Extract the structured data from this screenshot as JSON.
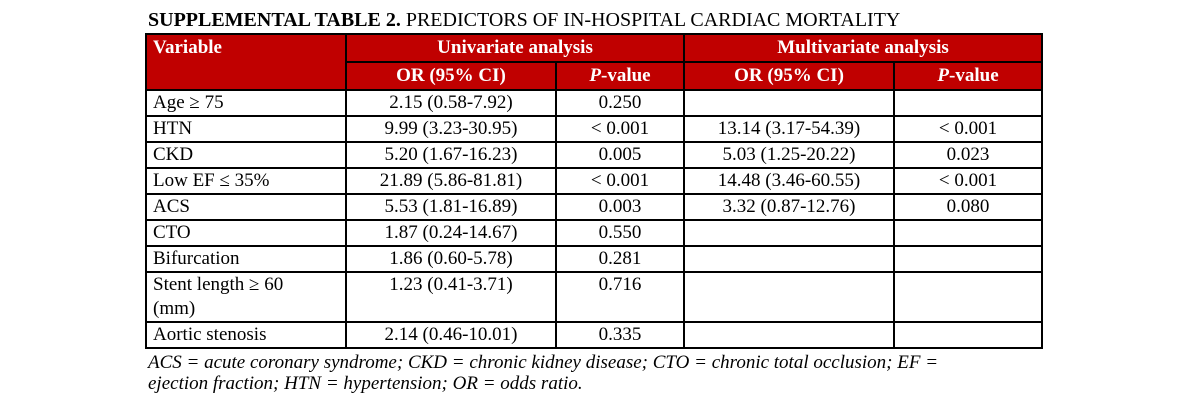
{
  "title": {
    "bold": "SUPPLEMENTAL TABLE 2.",
    "rest": " PREDICTORS OF IN-HOSPITAL CARDIAC MORTALITY"
  },
  "colors": {
    "header_bg": "#C00000",
    "header_text": "#FFFFFF",
    "border": "#000000"
  },
  "table": {
    "header": {
      "variable": "Variable",
      "univariate": "Univariate analysis",
      "multivariate": "Multivariate analysis",
      "or_ci_univariate": "OR (95% CI)",
      "or_ci_multivariate": "OR (95% CI)",
      "p_italic": "P",
      "p_rest": "-value"
    },
    "rows": [
      {
        "variable": "Age ≥ 75",
        "uni_or": "2.15 (0.58-7.92)",
        "uni_p": "0.250",
        "multi_or": "",
        "multi_p": ""
      },
      {
        "variable": "HTN",
        "uni_or": "9.99 (3.23-30.95)",
        "uni_p": "< 0.001",
        "multi_or": "13.14 (3.17-54.39)",
        "multi_p": "< 0.001"
      },
      {
        "variable": "CKD",
        "uni_or": "5.20 (1.67-16.23)",
        "uni_p": "0.005",
        "multi_or": "5.03 (1.25-20.22)",
        "multi_p": "0.023"
      },
      {
        "variable": "Low EF ≤ 35%",
        "uni_or": "21.89 (5.86-81.81)",
        "uni_p": "< 0.001",
        "multi_or": "14.48 (3.46-60.55)",
        "multi_p": "< 0.001"
      },
      {
        "variable": "ACS",
        "uni_or": "5.53 (1.81-16.89)",
        "uni_p": "0.003",
        "multi_or": "3.32 (0.87-12.76)",
        "multi_p": "0.080"
      },
      {
        "variable": "CTO",
        "uni_or": "1.87 (0.24-14.67)",
        "uni_p": "0.550",
        "multi_or": "",
        "multi_p": ""
      },
      {
        "variable": "Bifurcation",
        "uni_or": "1.86 (0.60-5.78)",
        "uni_p": "0.281",
        "multi_or": "",
        "multi_p": ""
      },
      {
        "variable": "Stent length ≥ 60\n(mm)",
        "uni_or": "1.23 (0.41-3.71)",
        "uni_p": "0.716",
        "multi_or": "",
        "multi_p": ""
      },
      {
        "variable": "Aortic stenosis",
        "uni_or": "2.14 (0.46-10.01)",
        "uni_p": "0.335",
        "multi_or": "",
        "multi_p": ""
      }
    ]
  },
  "footnote": {
    "lines": [
      "ACS = acute coronary syndrome; CKD = chronic kidney disease; CTO = chronic total occlusion; EF =",
      "ejection fraction; HTN = hypertension; OR = odds ratio."
    ]
  }
}
